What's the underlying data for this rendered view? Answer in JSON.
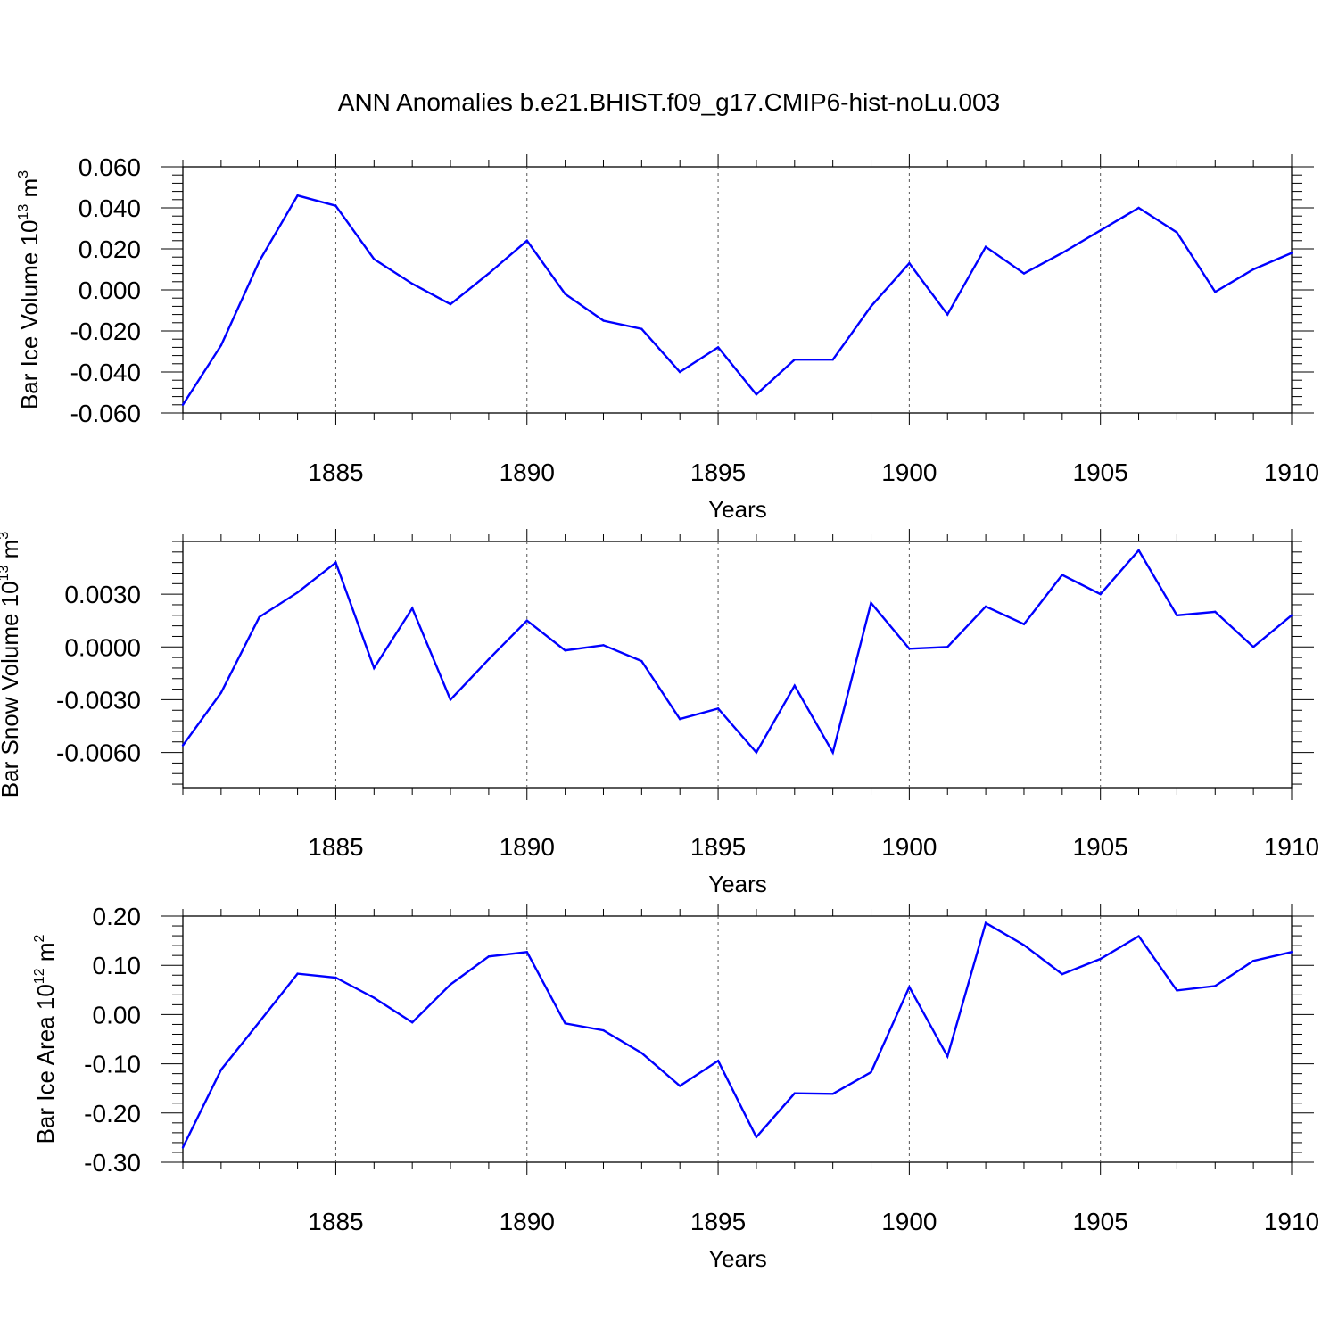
{
  "title": "ANN Anomalies b.e21.BHIST.f09_g17.CMIP6-hist-noLu.003",
  "colors": {
    "series": "#0000ff",
    "axis": "#000000",
    "grid": "#555555"
  },
  "chart_data": [
    {
      "type": "line",
      "ylabel": "Bar Ice Volume 10",
      "ylabel_sup": "13",
      "ylabel_unit": " m",
      "ylabel_unit_sup": "3",
      "xlabel": "Years",
      "xlim": [
        1881,
        1910
      ],
      "ylim": [
        -0.06,
        0.06
      ],
      "yticks": [
        -0.06,
        -0.04,
        -0.02,
        0.0,
        0.02,
        0.04,
        0.06
      ],
      "ytick_labels": [
        "-0.060",
        "-0.040",
        "-0.020",
        "0.000",
        "0.020",
        "0.040",
        "0.060"
      ],
      "xticks": [
        1885,
        1890,
        1895,
        1900,
        1905,
        1910
      ],
      "xtick_labels": [
        "1885",
        "1890",
        "1895",
        "1900",
        "1905",
        "1910"
      ],
      "x": [
        1881,
        1882,
        1883,
        1884,
        1885,
        1886,
        1887,
        1888,
        1889,
        1890,
        1891,
        1892,
        1893,
        1894,
        1895,
        1896,
        1897,
        1898,
        1899,
        1900,
        1901,
        1902,
        1903,
        1904,
        1905,
        1906,
        1907,
        1908,
        1909,
        1910
      ],
      "values": [
        -0.056,
        -0.027,
        0.014,
        0.046,
        0.041,
        0.015,
        0.003,
        -0.007,
        0.008,
        0.024,
        -0.002,
        -0.015,
        -0.019,
        -0.04,
        -0.028,
        -0.051,
        -0.034,
        -0.034,
        -0.008,
        0.013,
        -0.012,
        0.021,
        0.008,
        0.018,
        0.029,
        0.04,
        0.028,
        -0.001,
        0.01,
        0.018
      ]
    },
    {
      "type": "line",
      "ylabel": "Bar Snow Volume 10",
      "ylabel_sup": "13",
      "ylabel_unit": " m",
      "ylabel_unit_sup": "3",
      "xlabel": "Years",
      "xlim": [
        1881,
        1910
      ],
      "ylim": [
        -0.008,
        0.006
      ],
      "yticks": [
        -0.006,
        -0.003,
        0.0,
        0.003
      ],
      "ytick_labels": [
        "-0.0060",
        "-0.0030",
        "0.0000",
        "0.0030"
      ],
      "xticks": [
        1885,
        1890,
        1895,
        1900,
        1905,
        1910
      ],
      "xtick_labels": [
        "1885",
        "1890",
        "1895",
        "1900",
        "1905",
        "1910"
      ],
      "x": [
        1881,
        1882,
        1883,
        1884,
        1885,
        1886,
        1887,
        1888,
        1889,
        1890,
        1891,
        1892,
        1893,
        1894,
        1895,
        1896,
        1897,
        1898,
        1899,
        1900,
        1901,
        1902,
        1903,
        1904,
        1905,
        1906,
        1907,
        1908,
        1909,
        1910
      ],
      "values": [
        -0.0056,
        -0.0026,
        0.0017,
        0.0031,
        0.0048,
        -0.0012,
        0.0022,
        -0.003,
        -0.0007,
        0.0015,
        -0.0002,
        0.0001,
        -0.0008,
        -0.0041,
        -0.0035,
        -0.006,
        -0.0022,
        -0.006,
        0.0025,
        -0.0001,
        0.0,
        0.0023,
        0.0013,
        0.0041,
        0.003,
        0.0055,
        0.0018,
        0.002,
        0.0,
        0.0018
      ]
    },
    {
      "type": "line",
      "ylabel": "Bar Ice Area 10",
      "ylabel_sup": "12",
      "ylabel_unit": " m",
      "ylabel_unit_sup": "2",
      "xlabel": "Years",
      "xlim": [
        1881,
        1910
      ],
      "ylim": [
        -0.3,
        0.2
      ],
      "yticks": [
        -0.3,
        -0.2,
        -0.1,
        0.0,
        0.1,
        0.2
      ],
      "ytick_labels": [
        "-0.30",
        "-0.20",
        "-0.10",
        "0.00",
        "0.10",
        "0.20"
      ],
      "xticks": [
        1885,
        1890,
        1895,
        1900,
        1905,
        1910
      ],
      "xtick_labels": [
        "1885",
        "1890",
        "1895",
        "1900",
        "1905",
        "1910"
      ],
      "x": [
        1881,
        1882,
        1883,
        1884,
        1885,
        1886,
        1887,
        1888,
        1889,
        1890,
        1891,
        1892,
        1893,
        1894,
        1895,
        1896,
        1897,
        1898,
        1899,
        1900,
        1901,
        1902,
        1903,
        1904,
        1905,
        1906,
        1907,
        1908,
        1909,
        1910
      ],
      "values": [
        -0.27,
        -0.112,
        -0.015,
        0.083,
        0.075,
        0.034,
        -0.016,
        0.061,
        0.118,
        0.127,
        -0.018,
        -0.032,
        -0.078,
        -0.145,
        -0.094,
        -0.249,
        -0.16,
        -0.161,
        -0.117,
        0.056,
        -0.085,
        0.186,
        0.141,
        0.082,
        0.113,
        0.159,
        0.049,
        0.058,
        0.109,
        0.127
      ]
    }
  ]
}
